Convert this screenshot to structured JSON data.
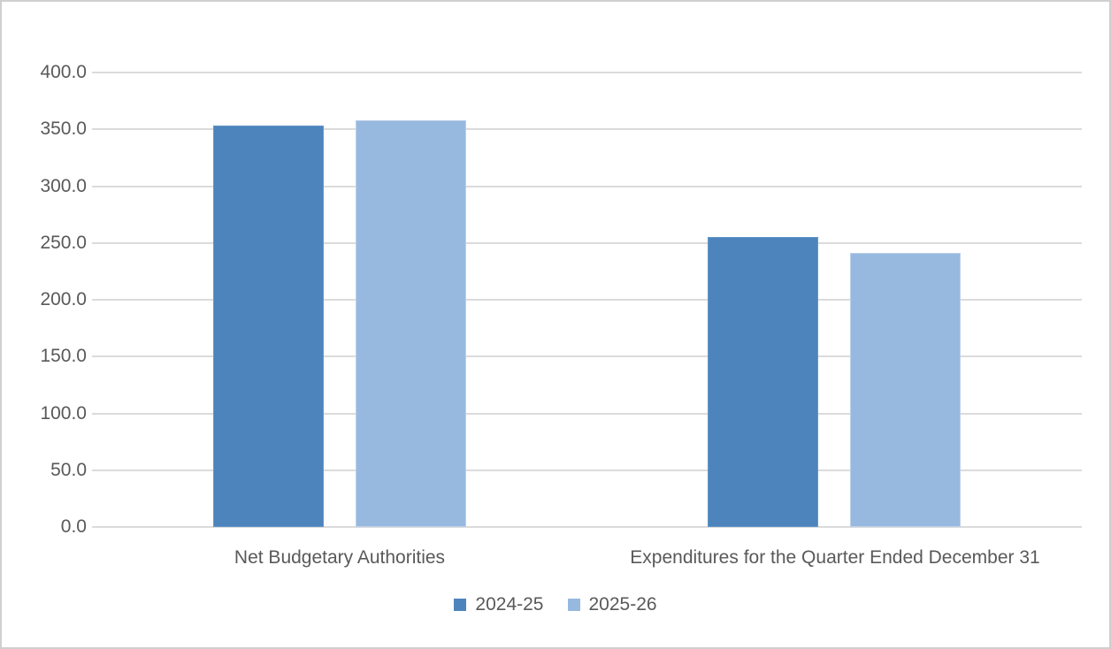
{
  "chart_data": {
    "type": "bar",
    "title": "",
    "categories": [
      "Net Budgetary Authorities",
      "Expenditures for the Quarter Ended December 31"
    ],
    "series": [
      {
        "name": "2024-25",
        "color": "#4E84BC",
        "edge_color": "#6397C9",
        "values": [
          353,
          255
        ]
      },
      {
        "name": "2025-26",
        "color": "#97B9DF",
        "edge_color": "#BCD0EA",
        "values": [
          358,
          241
        ]
      }
    ],
    "ylim": [
      0,
      400
    ],
    "ytick_step": 50,
    "ytick_labels": [
      "0.0",
      "50.0",
      "100.0",
      "150.0",
      "200.0",
      "250.0",
      "300.0",
      "350.0",
      "400.0"
    ],
    "xlabel": "",
    "ylabel": "",
    "grid": true,
    "legend_position": "bottom"
  },
  "colors": {
    "gridline": "#DBDBDB",
    "text": "#595959",
    "chart_border": "#CFCFCF",
    "background": "#FFFFFF"
  }
}
